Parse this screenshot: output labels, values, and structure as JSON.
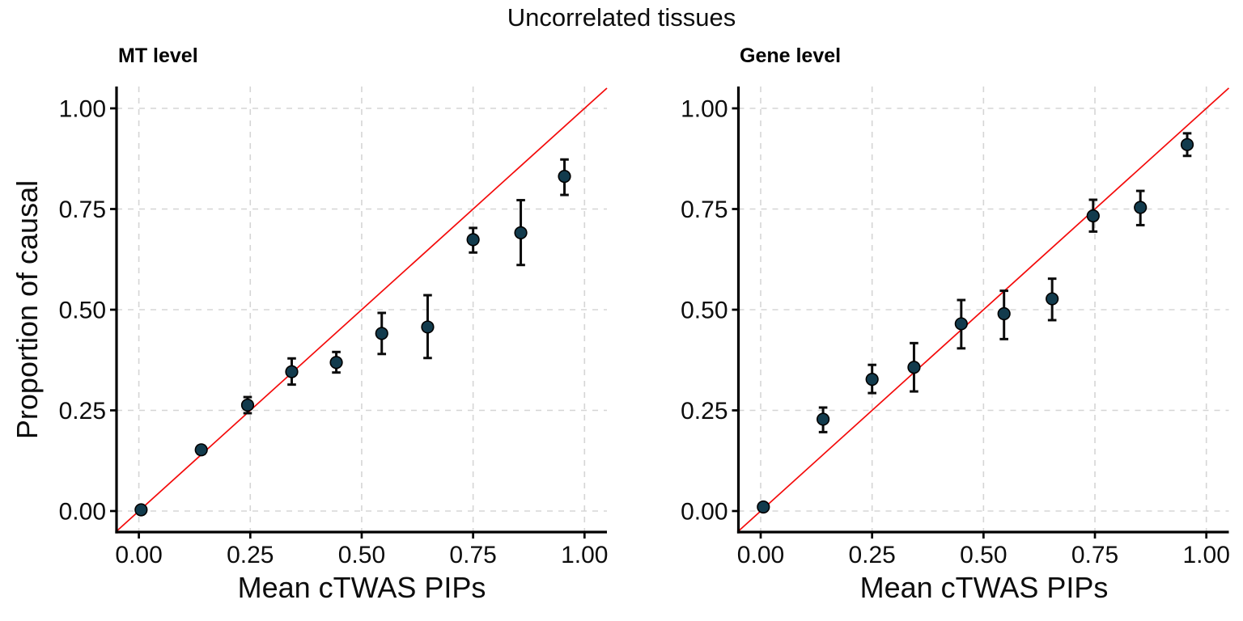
{
  "title": "Uncorrelated tissues",
  "x_axis_title": "Mean cTWAS PIPs",
  "y_axis_title": "Proportion of causal",
  "colors": {
    "point_fill": "#123b4d",
    "point_stroke": "#000000",
    "error_bar": "#0b0b0b",
    "diagonal": "#f40b0b",
    "grid": "#d5d5d5",
    "axis": "#000000",
    "background": "#ffffff"
  },
  "chart_data": [
    {
      "type": "scatter",
      "title": "MT level",
      "xlabel": "Mean cTWAS PIPs",
      "ylabel": "Proportion of causal",
      "xlim": [
        -0.05,
        1.05
      ],
      "ylim": [
        -0.05,
        1.05
      ],
      "grid": "dashed",
      "diagonal_line": "y = x",
      "x_ticks": [
        "0.00",
        "0.25",
        "0.50",
        "0.75",
        "1.00"
      ],
      "y_ticks": [
        "0.00",
        "0.25",
        "0.50",
        "0.75",
        "1.00"
      ],
      "points": [
        {
          "x": 0.005,
          "y": 0.003,
          "y_lo": 0.0,
          "y_hi": 0.007
        },
        {
          "x": 0.14,
          "y": 0.152,
          "y_lo": 0.142,
          "y_hi": 0.162
        },
        {
          "x": 0.244,
          "y": 0.263,
          "y_lo": 0.243,
          "y_hi": 0.283
        },
        {
          "x": 0.343,
          "y": 0.346,
          "y_lo": 0.314,
          "y_hi": 0.379
        },
        {
          "x": 0.443,
          "y": 0.369,
          "y_lo": 0.344,
          "y_hi": 0.395
        },
        {
          "x": 0.545,
          "y": 0.441,
          "y_lo": 0.39,
          "y_hi": 0.492
        },
        {
          "x": 0.648,
          "y": 0.457,
          "y_lo": 0.38,
          "y_hi": 0.536
        },
        {
          "x": 0.75,
          "y": 0.674,
          "y_lo": 0.642,
          "y_hi": 0.703
        },
        {
          "x": 0.857,
          "y": 0.691,
          "y_lo": 0.611,
          "y_hi": 0.772
        },
        {
          "x": 0.955,
          "y": 0.831,
          "y_lo": 0.785,
          "y_hi": 0.873
        }
      ]
    },
    {
      "type": "scatter",
      "title": "Gene level",
      "xlabel": "Mean cTWAS PIPs",
      "ylabel": "Proportion of causal",
      "xlim": [
        -0.05,
        1.05
      ],
      "ylim": [
        -0.05,
        1.05
      ],
      "grid": "dashed",
      "diagonal_line": "y = x",
      "x_ticks": [
        "0.00",
        "0.25",
        "0.50",
        "0.75",
        "1.00"
      ],
      "y_ticks": [
        "0.00",
        "0.25",
        "0.50",
        "0.75",
        "1.00"
      ],
      "points": [
        {
          "x": 0.006,
          "y": 0.01,
          "y_lo": 0.006,
          "y_hi": 0.014
        },
        {
          "x": 0.14,
          "y": 0.228,
          "y_lo": 0.196,
          "y_hi": 0.257
        },
        {
          "x": 0.25,
          "y": 0.327,
          "y_lo": 0.293,
          "y_hi": 0.363
        },
        {
          "x": 0.344,
          "y": 0.357,
          "y_lo": 0.297,
          "y_hi": 0.417
        },
        {
          "x": 0.45,
          "y": 0.465,
          "y_lo": 0.404,
          "y_hi": 0.524
        },
        {
          "x": 0.546,
          "y": 0.49,
          "y_lo": 0.427,
          "y_hi": 0.547
        },
        {
          "x": 0.654,
          "y": 0.527,
          "y_lo": 0.474,
          "y_hi": 0.577
        },
        {
          "x": 0.746,
          "y": 0.733,
          "y_lo": 0.694,
          "y_hi": 0.773
        },
        {
          "x": 0.852,
          "y": 0.754,
          "y_lo": 0.71,
          "y_hi": 0.795
        },
        {
          "x": 0.957,
          "y": 0.91,
          "y_lo": 0.882,
          "y_hi": 0.938
        }
      ]
    }
  ]
}
